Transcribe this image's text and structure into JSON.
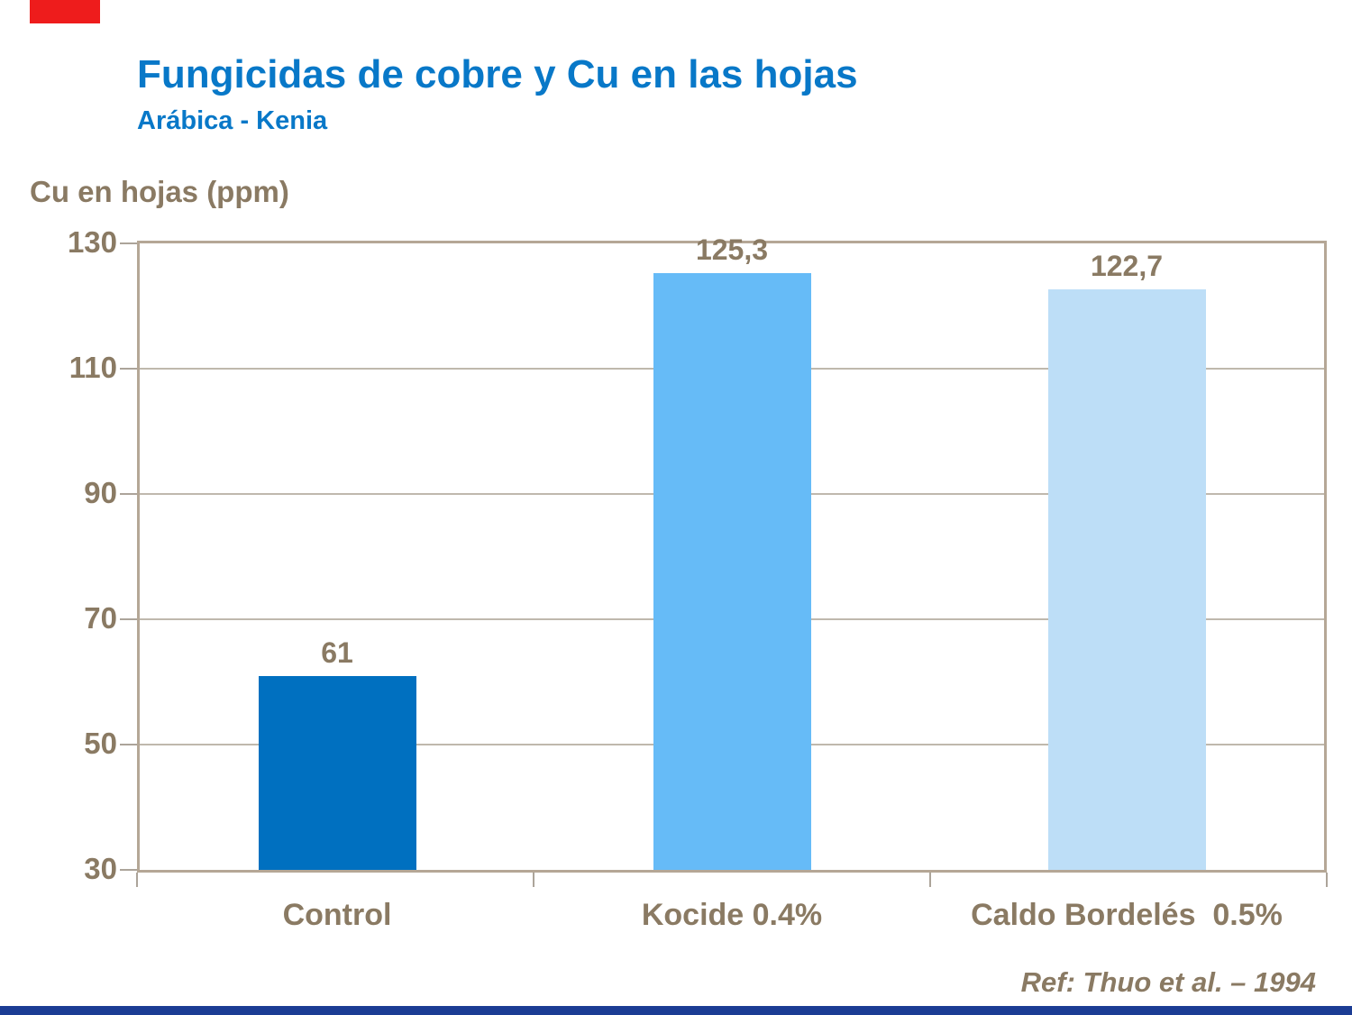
{
  "slide": {
    "title": "Fungicidas de cobre y Cu en las hojas",
    "subtitle": "Arábica - Kenia",
    "reference": "Ref: Thuo et al. – 1994"
  },
  "colors": {
    "title_blue": "#0878C8",
    "text_brown": "#8A7A63",
    "plot_border_tan": "#B5A796",
    "gridline_gray": "#BFB8AD",
    "tick_mark_gray": "#ACA49A",
    "red_accent": "#EE1C1C",
    "bottom_strip_blue": "#1B3C94",
    "bar_control_blue": "#0070C0",
    "bar_kocide_blue": "#66BBF7",
    "bar_caldo_blue": "#BDDEF7"
  },
  "chart_data": {
    "type": "bar",
    "title": "Fungicidas de cobre y Cu en las hojas",
    "subtitle": "Arábica - Kenia",
    "ylabel": "Cu en hojas (ppm)",
    "xlabel": "",
    "categories": [
      "Control",
      "Kocide 0.4%",
      "Caldo Bordelés  0.5%"
    ],
    "values": [
      61,
      125.3,
      122.7
    ],
    "value_labels": [
      "61",
      "125,3",
      "122,7"
    ],
    "bar_colors": [
      "#0070C0",
      "#66BBF7",
      "#BDDEF7"
    ],
    "ylim": [
      30,
      130
    ],
    "y_ticks": [
      130,
      110,
      90,
      70,
      50,
      30
    ],
    "grid": "horizontal",
    "legend_position": "none",
    "annotation": "Ref: Thuo et al. – 1994"
  }
}
